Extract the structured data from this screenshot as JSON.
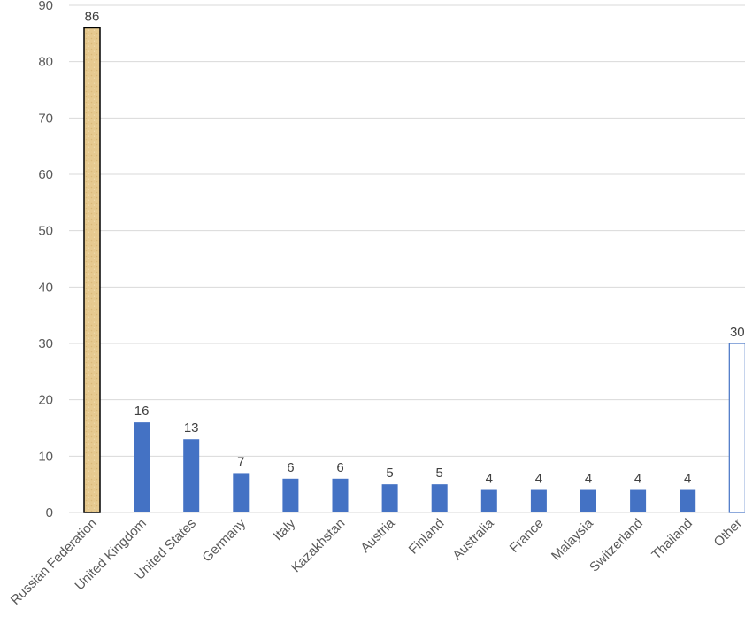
{
  "chart_data": {
    "type": "bar",
    "title": "",
    "xlabel": "",
    "ylabel": "",
    "ylim": [
      0,
      90
    ],
    "yticks": [
      0,
      10,
      20,
      30,
      40,
      50,
      60,
      70,
      80,
      90
    ],
    "grid": true,
    "legend": "none",
    "categories": [
      "Russian Federation",
      "United Kingdom",
      "United States",
      "Germany",
      "Italy",
      "Kazakhstan",
      "Austria",
      "Finland",
      "Australia",
      "France",
      "Malaysia",
      "Switzerland",
      "Thailand",
      "Other"
    ],
    "values": [
      86,
      16,
      13,
      7,
      6,
      6,
      5,
      5,
      4,
      4,
      4,
      4,
      4,
      30
    ],
    "bar_styles": [
      "tan-textured",
      "solid",
      "solid",
      "solid",
      "solid",
      "solid",
      "solid",
      "solid",
      "solid",
      "solid",
      "solid",
      "solid",
      "solid",
      "outline"
    ],
    "colors": {
      "bar": "#4472c4",
      "highlight_fill": "#e6c98f",
      "highlight_stroke": "#000000",
      "other_stroke": "#4472c4",
      "grid": "#d9d9d9"
    }
  }
}
